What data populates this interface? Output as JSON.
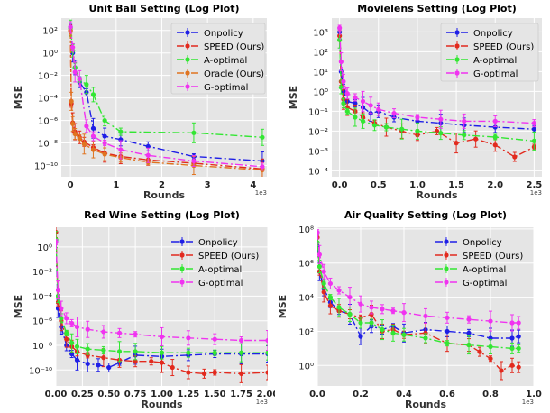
{
  "chart_data": [
    {
      "type": "line",
      "title": "Unit Ball Setting (Log Plot)",
      "xlabel": "Rounds",
      "ylabel": "MSE",
      "xscale_note": "1e3",
      "xscale": "linear",
      "yscale": "log",
      "xlim": [
        -0.2,
        4.3
      ],
      "ylim_exp": [
        -11,
        3.1
      ],
      "xticks": [
        "0",
        "1",
        "2",
        "3",
        "4"
      ],
      "xtick_values": [
        0,
        1,
        2,
        3,
        4
      ],
      "ytick_exps": [
        2,
        0,
        -2,
        -4,
        -6,
        -8,
        -10
      ],
      "grid": true,
      "legend_position": "top-right",
      "legend_frame": true,
      "series": [
        {
          "name": "Onpolicy",
          "color": "#1f1fe6",
          "dash": "8,3,2,3",
          "x": [
            0,
            0.05,
            0.1,
            0.2,
            0.35,
            0.5,
            0.75,
            1.1,
            1.7,
            2.7,
            4.2
          ],
          "y_exp": [
            2.3,
            0,
            -1.3,
            -2.6,
            -3.5,
            -6.7,
            -7.4,
            -7.7,
            -8.3,
            -9.2,
            -9.6
          ]
        },
        {
          "name": "SPEED (Ours)",
          "color": "#e22a1e",
          "dash": "8,3,2,3",
          "x": [
            0,
            0.02,
            0.05,
            0.1,
            0.2,
            0.3,
            0.5,
            0.75,
            1.1,
            1.7,
            2.7,
            4.2
          ],
          "y_exp": [
            2.0,
            -4.5,
            -6.2,
            -7.0,
            -7.5,
            -7.9,
            -8.4,
            -8.9,
            -9.2,
            -9.5,
            -9.8,
            -10.3
          ]
        },
        {
          "name": "A-optimal",
          "color": "#33e633",
          "dash": "8,3,2,3",
          "x": [
            0,
            0.05,
            0.1,
            0.2,
            0.35,
            0.5,
            0.75,
            1.1,
            2.7,
            4.2
          ],
          "y_exp": [
            2.2,
            0.2,
            -1.3,
            -2.4,
            -2.8,
            -3.7,
            -6.0,
            -7.0,
            -7.1,
            -7.5
          ]
        },
        {
          "name": "Oracle (Ours)",
          "color": "#e07420",
          "dash": "8,3,2,3",
          "x": [
            0,
            0.02,
            0.05,
            0.1,
            0.2,
            0.3,
            0.5,
            0.75,
            1.1,
            1.7,
            2.7,
            4.2
          ],
          "y_exp": [
            1.9,
            -4.3,
            -6.3,
            -7.2,
            -7.6,
            -8.1,
            -8.6,
            -9.0,
            -9.3,
            -9.7,
            -10.0,
            -10.4
          ]
        },
        {
          "name": "G-optimal",
          "color": "#f033f0",
          "dash": "8,3,2,3",
          "x": [
            0,
            0.05,
            0.1,
            0.2,
            0.35,
            0.5,
            0.75,
            1.1,
            1.7,
            2.7,
            4.2
          ],
          "y_exp": [
            2.3,
            0.5,
            -1.7,
            -2.3,
            -6.5,
            -7.4,
            -8.0,
            -8.6,
            -9.1,
            -9.6,
            -10.1
          ]
        }
      ]
    },
    {
      "type": "line",
      "title": "Movielens Setting (Log Plot)",
      "xlabel": "Rounds",
      "ylabel": "MSE",
      "xscale_note": "1e3",
      "xscale": "linear",
      "yscale": "log",
      "xlim": [
        -0.1,
        2.6
      ],
      "ylim_exp": [
        -4.3,
        3.7
      ],
      "xticks": [
        "0.0",
        "0.5",
        "1.0",
        "1.5",
        "2.0",
        "2.5"
      ],
      "xtick_values": [
        0,
        0.5,
        1.0,
        1.5,
        2.0,
        2.5
      ],
      "ytick_exps": [
        3,
        2,
        1,
        0,
        -1,
        -2,
        -3,
        -4
      ],
      "grid": true,
      "legend_position": "top-right",
      "legend_frame": true,
      "series": [
        {
          "name": "Onpolicy",
          "color": "#1f1fe6",
          "dash": "8,3,2,3",
          "x": [
            0,
            0.02,
            0.05,
            0.1,
            0.2,
            0.3,
            0.4,
            0.5,
            0.7,
            1.0,
            1.3,
            1.6,
            2.0,
            2.5
          ],
          "y_exp": [
            3.0,
            1.0,
            0,
            -0.5,
            -0.6,
            -0.8,
            -1.1,
            -1.0,
            -1.3,
            -1.5,
            -1.6,
            -1.7,
            -1.8,
            -1.9
          ]
        },
        {
          "name": "SPEED (Ours)",
          "color": "#e22a1e",
          "dash": "8,3,2,3",
          "x": [
            0,
            0.02,
            0.05,
            0.1,
            0.2,
            0.3,
            0.45,
            0.6,
            0.8,
            1.0,
            1.25,
            1.5,
            1.75,
            2.0,
            2.25,
            2.5
          ],
          "y_exp": [
            2.8,
            0.5,
            -0.4,
            -0.8,
            -1.0,
            -1.3,
            -1.6,
            -1.8,
            -2.0,
            -2.2,
            -2.0,
            -2.6,
            -2.4,
            -2.7,
            -3.3,
            -2.8
          ]
        },
        {
          "name": "A-optimal",
          "color": "#33e633",
          "dash": "8,3,2,3",
          "x": [
            0,
            0.02,
            0.05,
            0.1,
            0.2,
            0.3,
            0.45,
            0.6,
            0.8,
            1.0,
            1.3,
            1.6,
            2.0,
            2.5
          ],
          "y_exp": [
            2.6,
            0.2,
            -0.6,
            -1.0,
            -1.3,
            -1.5,
            -1.7,
            -1.8,
            -1.9,
            -2.0,
            -2.1,
            -2.2,
            -2.3,
            -2.5
          ]
        },
        {
          "name": "G-optimal",
          "color": "#f033f0",
          "dash": "8,3,2,3",
          "x": [
            0,
            0.02,
            0.05,
            0.1,
            0.2,
            0.3,
            0.4,
            0.5,
            0.7,
            1.0,
            1.3,
            1.6,
            2.0,
            2.5
          ],
          "y_exp": [
            3.2,
            1.5,
            0.5,
            -0.1,
            -0.3,
            -0.5,
            -0.7,
            -0.9,
            -1.1,
            -1.3,
            -1.4,
            -1.5,
            -1.5,
            -1.6
          ]
        }
      ]
    },
    {
      "type": "line",
      "title": "Red Wine Setting (Log Plot)",
      "xlabel": "Rounds",
      "ylabel": "MSE",
      "xscale_note": "1e3",
      "xscale": "linear",
      "yscale": "log",
      "xlim": [
        0,
        2.0
      ],
      "ylim_exp": [
        -11.3,
        1.6
      ],
      "xticks": [
        "0.00",
        "0.25",
        "0.50",
        "0.75",
        "1.00",
        "1.25",
        "1.50",
        "1.75",
        "2.00"
      ],
      "xtick_values": [
        0,
        0.25,
        0.5,
        0.75,
        1.0,
        1.25,
        1.5,
        1.75,
        2.0
      ],
      "ytick_exps": [
        0,
        -2,
        -4,
        -6,
        -8,
        -10
      ],
      "grid": true,
      "legend_position": "top-right",
      "legend_frame": false,
      "series": [
        {
          "name": "Onpolicy",
          "color": "#1f1fe6",
          "dash": "8,3,2,3",
          "x": [
            0,
            0.02,
            0.05,
            0.1,
            0.15,
            0.2,
            0.3,
            0.4,
            0.5,
            0.6,
            0.75,
            1.0,
            1.25,
            1.5,
            1.75,
            2.0
          ],
          "y_exp": [
            0.5,
            -5.0,
            -6.5,
            -8.0,
            -8.7,
            -9.2,
            -9.5,
            -9.6,
            -9.8,
            -9.4,
            -8.8,
            -8.9,
            -8.8,
            -8.7,
            -8.7,
            -8.7
          ]
        },
        {
          "name": "SPEED (Ours)",
          "color": "#e22a1e",
          "dash": "8,3,2,3",
          "x": [
            0,
            0.02,
            0.05,
            0.1,
            0.15,
            0.2,
            0.3,
            0.45,
            0.6,
            0.75,
            0.9,
            1.0,
            1.1,
            1.25,
            1.4,
            1.5,
            1.75,
            2.0
          ],
          "y_exp": [
            1.2,
            -4.5,
            -6.0,
            -7.5,
            -8.1,
            -8.5,
            -8.8,
            -9.0,
            -9.2,
            -9.3,
            -9.3,
            -9.4,
            -9.8,
            -10.2,
            -10.3,
            -10.2,
            -10.3,
            -10.2
          ]
        },
        {
          "name": "A-optimal",
          "color": "#33e633",
          "dash": "8,3,2,3",
          "x": [
            0,
            0.02,
            0.05,
            0.1,
            0.15,
            0.2,
            0.3,
            0.45,
            0.6,
            0.75,
            1.0,
            1.25,
            1.5,
            1.75,
            2.0
          ],
          "y_exp": [
            0.6,
            -4.0,
            -5.8,
            -7.0,
            -7.8,
            -8.1,
            -8.3,
            -8.4,
            -8.5,
            -8.5,
            -8.6,
            -8.6,
            -8.6,
            -8.6,
            -8.6
          ]
        },
        {
          "name": "G-optimal",
          "color": "#f033f0",
          "dash": "8,3,2,3",
          "x": [
            0,
            0.02,
            0.05,
            0.1,
            0.15,
            0.2,
            0.3,
            0.45,
            0.6,
            0.75,
            1.0,
            1.25,
            1.5,
            1.75,
            2.0
          ],
          "y_exp": [
            0.4,
            -3.5,
            -5.0,
            -5.8,
            -6.2,
            -6.5,
            -6.7,
            -6.9,
            -7.0,
            -7.1,
            -7.3,
            -7.4,
            -7.5,
            -7.6,
            -7.6
          ]
        }
      ]
    },
    {
      "type": "line",
      "title": "Air Quality Setting (Log Plot)",
      "xlabel": "Rounds",
      "ylabel": "MSE",
      "xscale_note": "1e3",
      "xscale": "linear",
      "yscale": "log",
      "xlim": [
        0,
        1.0
      ],
      "ylim_exp": [
        -1.2,
        8.1
      ],
      "xticks": [
        "0.0",
        "0.2",
        "0.4",
        "0.6",
        "0.8",
        "1.0"
      ],
      "xtick_values": [
        0,
        0.2,
        0.4,
        0.6,
        0.8,
        1.0
      ],
      "ytick_exps": [
        8,
        6,
        4,
        2,
        0
      ],
      "grid": true,
      "legend_position": "top-right",
      "legend_frame": false,
      "series": [
        {
          "name": "Onpolicy",
          "color": "#1f1fe6",
          "dash": "8,3,2,3",
          "x": [
            0,
            0.01,
            0.03,
            0.06,
            0.1,
            0.15,
            0.2,
            0.25,
            0.3,
            0.35,
            0.4,
            0.5,
            0.6,
            0.7,
            0.8,
            0.9,
            0.93
          ],
          "y_exp": [
            7.0,
            5.5,
            4.5,
            3.7,
            3.2,
            3.0,
            1.7,
            2.3,
            2.1,
            2.3,
            1.9,
            2.1,
            2.0,
            1.9,
            1.6,
            1.6,
            1.7
          ]
        },
        {
          "name": "SPEED (Ours)",
          "color": "#e22a1e",
          "dash": "8,3,2,3",
          "x": [
            0,
            0.01,
            0.03,
            0.06,
            0.1,
            0.15,
            0.2,
            0.25,
            0.3,
            0.35,
            0.4,
            0.5,
            0.6,
            0.7,
            0.75,
            0.8,
            0.85,
            0.9,
            0.93
          ],
          "y_exp": [
            7.5,
            5.5,
            4.3,
            3.5,
            3.2,
            3.0,
            2.8,
            3.0,
            2.0,
            2.1,
            1.8,
            1.9,
            1.3,
            1.2,
            0.8,
            0.4,
            -0.3,
            0.0,
            -0.1
          ]
        },
        {
          "name": "A-optimal",
          "color": "#33e633",
          "dash": "8,3,2,3",
          "x": [
            0,
            0.01,
            0.03,
            0.06,
            0.1,
            0.15,
            0.2,
            0.25,
            0.3,
            0.35,
            0.4,
            0.5,
            0.6,
            0.7,
            0.8,
            0.9,
            0.93
          ],
          "y_exp": [
            7.2,
            5.8,
            4.8,
            4.0,
            3.4,
            3.0,
            2.5,
            2.5,
            2.1,
            1.9,
            1.8,
            1.6,
            1.3,
            1.2,
            1.1,
            1.0,
            1.0
          ]
        },
        {
          "name": "G-optimal",
          "color": "#f033f0",
          "dash": "8,3,2,3",
          "x": [
            0,
            0.01,
            0.03,
            0.06,
            0.1,
            0.15,
            0.2,
            0.25,
            0.3,
            0.35,
            0.4,
            0.5,
            0.6,
            0.7,
            0.8,
            0.9,
            0.93
          ],
          "y_exp": [
            7.8,
            6.5,
            5.5,
            4.8,
            4.4,
            4.0,
            3.6,
            3.4,
            3.3,
            3.2,
            3.1,
            2.9,
            2.8,
            2.7,
            2.6,
            2.5,
            2.5
          ]
        }
      ]
    }
  ]
}
